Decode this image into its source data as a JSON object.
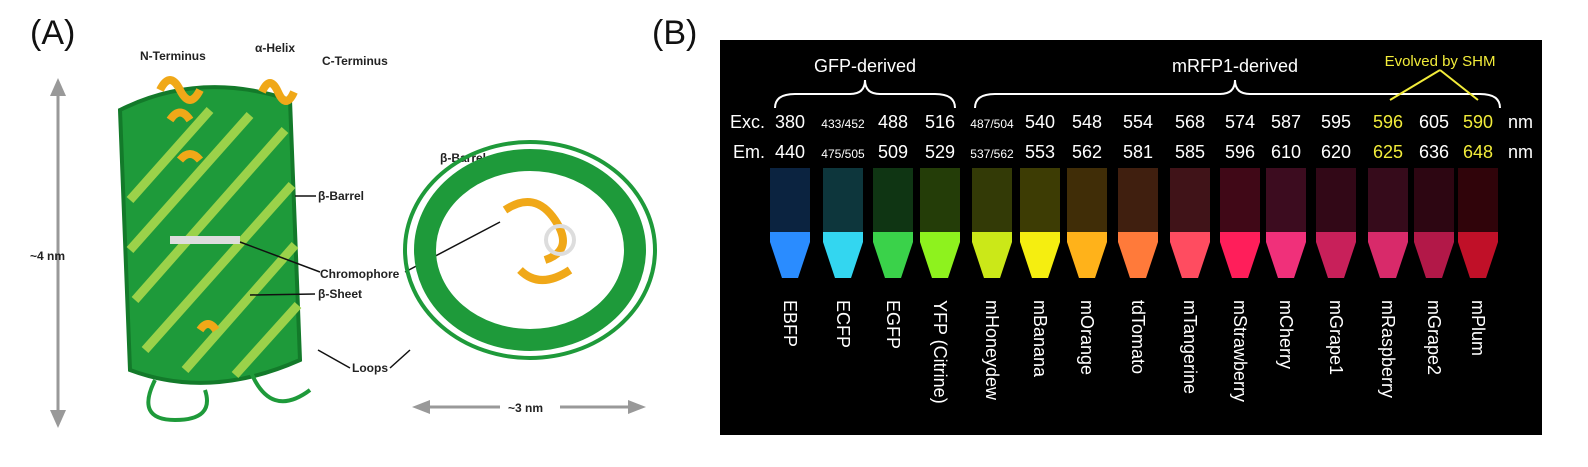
{
  "panel_a": {
    "label": "(A)",
    "annotations": {
      "n_terminus": "N-Terminus",
      "alpha_helix": "α-Helix",
      "c_terminus": "C-Terminus",
      "beta_barrel_side": "β-Barrel",
      "height": "~4 nm",
      "chromophore": "Chromophore",
      "beta_sheet": "β-Sheet",
      "loops": "Loops",
      "beta_barrel_top": "β-Barrel",
      "width": "~3 nm"
    }
  },
  "panel_b": {
    "label": "(B)",
    "groups": {
      "gfp": "GFP-derived",
      "mrfp": "mRFP1-derived",
      "shm": "Evolved by SHM"
    },
    "row_labels": {
      "exc": "Exc.",
      "em": "Em."
    },
    "unit": "nm",
    "columns": [
      {
        "name": "EBFP",
        "exc": 380,
        "em": 440,
        "color": "#2a8cff",
        "text_color": "#ffffff"
      },
      {
        "name": "ECFP",
        "exc": "433/452",
        "em": "475/505",
        "color": "#33d6f0",
        "text_color": "#ffffff"
      },
      {
        "name": "EGFP",
        "exc": 488,
        "em": 509,
        "color": "#3ad24a",
        "text_color": "#ffffff"
      },
      {
        "name": "YFP (Citrine)",
        "exc": 516,
        "em": 529,
        "color": "#8ef21e",
        "text_color": "#ffffff"
      },
      {
        "name": "mHoneydew",
        "exc": "487/504",
        "em": "537/562",
        "color": "#cbe818",
        "text_color": "#ffffff"
      },
      {
        "name": "mBanana",
        "exc": 540,
        "em": 553,
        "color": "#f5ee10",
        "text_color": "#ffffff"
      },
      {
        "name": "mOrange",
        "exc": 548,
        "em": 562,
        "color": "#ffb21a",
        "text_color": "#ffffff"
      },
      {
        "name": "tdTomato",
        "exc": 554,
        "em": 581,
        "color": "#ff7a3a",
        "text_color": "#ffffff"
      },
      {
        "name": "mTangerine",
        "exc": 568,
        "em": 585,
        "color": "#ff4c60",
        "text_color": "#ffffff"
      },
      {
        "name": "mStrawberry",
        "exc": 574,
        "em": 596,
        "color": "#ff1e5a",
        "text_color": "#ffffff"
      },
      {
        "name": "mCherry",
        "exc": 587,
        "em": 610,
        "color": "#f0307a",
        "text_color": "#ffffff"
      },
      {
        "name": "mGrape1",
        "exc": 595,
        "em": 620,
        "color": "#c8205a",
        "text_color": "#ffffff"
      },
      {
        "name": "mRaspberry",
        "exc": 596,
        "em": 625,
        "color": "#d82a6a",
        "text_color": "#f2ec3a"
      },
      {
        "name": "mGrape2",
        "exc": 605,
        "em": 636,
        "color": "#b21848",
        "text_color": "#ffffff"
      },
      {
        "name": "mPlum",
        "exc": 590,
        "em": 648,
        "color": "#c01028",
        "text_color": "#f2ec3a"
      }
    ]
  }
}
